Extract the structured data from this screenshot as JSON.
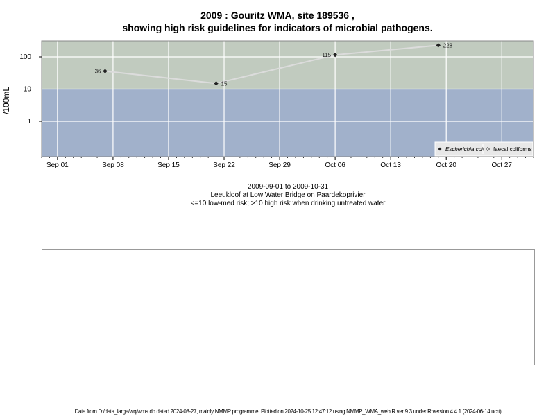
{
  "title_line1": "2009 : Gouritz WMA, site 189536 ,",
  "title_line2": "showing high risk guidelines for indicators of microbial pathogens.",
  "chart_data": {
    "type": "line",
    "ylabel": "/100mL",
    "y_scale": "log",
    "yticks": [
      "1",
      "10",
      "100"
    ],
    "xticks": [
      "Sep 01",
      "Sep 08",
      "Sep 15",
      "Sep 22",
      "Sep 29",
      "Oct 06",
      "Oct 13",
      "Oct 20",
      "Oct 27"
    ],
    "x_range": [
      "2009-08-30",
      "2009-10-31"
    ],
    "risk_threshold": 10,
    "bands": {
      "high_risk_color": "#c1cbbf",
      "low_risk_color": "#a1b1cb",
      "line_color": "#dcdcdc"
    },
    "series": [
      {
        "name": "Escherichia coli",
        "x": [
          "2009-09-07",
          "2009-09-21",
          "2009-10-06",
          "2009-10-19"
        ],
        "values": [
          36,
          15,
          115,
          228
        ],
        "labels": [
          "36",
          "15",
          "115",
          "228"
        ]
      }
    ],
    "legend": {
      "position": "bottom-right",
      "entries": [
        "Escherichia coli",
        "faecal coliforms"
      ]
    },
    "grid": true
  },
  "caption": {
    "date_range": "2009-09-01 to 2009-10-31",
    "site_name": "Leeukloof at Low Water Bridge on Paardekoprivier",
    "guideline": "<=10 low-med risk; >10 high risk when drinking untreated water"
  },
  "footer": "Data from D:/data_large/wq/wms.db dated 2024-08-27, mainly NMMP programme. Plotted on 2024-10-25 12:47:12 using NMMP_WMA_web.R ver 9.3 under R version 4.4.1 (2024-06-14 ucrt)"
}
